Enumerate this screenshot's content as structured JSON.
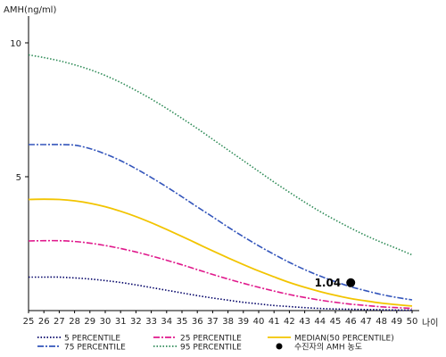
{
  "chart_data": {
    "type": "line",
    "ylabel": "AMH(ng/ml)",
    "xlabel": "나이",
    "xlim": [
      25,
      50
    ],
    "ylim": [
      0,
      11
    ],
    "yticks": [
      5,
      10
    ],
    "x": [
      25,
      26,
      27,
      28,
      29,
      30,
      31,
      32,
      33,
      34,
      35,
      36,
      37,
      38,
      39,
      40,
      41,
      42,
      43,
      44,
      45,
      46,
      47,
      48,
      49,
      50
    ],
    "series": [
      {
        "name": "5 PERCENTILE",
        "color": "#000066",
        "dash": "1.5,2",
        "values": [
          1.25,
          1.25,
          1.25,
          1.22,
          1.18,
          1.12,
          1.05,
          0.96,
          0.86,
          0.76,
          0.66,
          0.56,
          0.47,
          0.39,
          0.31,
          0.25,
          0.19,
          0.15,
          0.11,
          0.08,
          0.06,
          0.05,
          0.04,
          0.03,
          0.02,
          0.02
        ]
      },
      {
        "name": "25 PERCENTILE",
        "color": "#e0198c",
        "dash": "7,2,2,2",
        "values": [
          2.6,
          2.61,
          2.61,
          2.58,
          2.52,
          2.43,
          2.32,
          2.19,
          2.04,
          1.88,
          1.71,
          1.53,
          1.35,
          1.18,
          1.02,
          0.87,
          0.73,
          0.6,
          0.49,
          0.39,
          0.31,
          0.24,
          0.19,
          0.14,
          0.11,
          0.08
        ]
      },
      {
        "name": "MEDIAN(50 PERCENTILE)",
        "color": "#f2c400",
        "dash": "",
        "values": [
          4.15,
          4.16,
          4.15,
          4.1,
          4.01,
          3.88,
          3.71,
          3.51,
          3.28,
          3.03,
          2.77,
          2.5,
          2.23,
          1.97,
          1.72,
          1.48,
          1.26,
          1.05,
          0.87,
          0.71,
          0.57,
          0.45,
          0.36,
          0.28,
          0.22,
          0.17
        ]
      },
      {
        "name": "75 PERCENTILE",
        "color": "#3355bb",
        "dash": "7,2,2,2",
        "values": [
          6.2,
          6.2,
          6.2,
          6.18,
          6.05,
          5.85,
          5.6,
          5.3,
          4.97,
          4.62,
          4.25,
          3.87,
          3.5,
          3.12,
          2.76,
          2.42,
          2.1,
          1.8,
          1.53,
          1.29,
          1.08,
          0.89,
          0.74,
          0.6,
          0.49,
          0.4
        ]
      },
      {
        "name": "95 PERCENTILE",
        "color": "#2e8b57",
        "dash": "1.5,2",
        "values": [
          9.55,
          9.45,
          9.33,
          9.18,
          9.0,
          8.78,
          8.52,
          8.22,
          7.9,
          7.55,
          7.18,
          6.8,
          6.4,
          6.0,
          5.6,
          5.2,
          4.8,
          4.42,
          4.05,
          3.7,
          3.38,
          3.08,
          2.8,
          2.55,
          2.32,
          2.08
        ]
      }
    ],
    "marker": {
      "name": "수진자의 AMH 농도",
      "x": 46,
      "y": 1.04,
      "label": "1.04"
    },
    "legend": {
      "placement": "bottom",
      "order": [
        "5 PERCENTILE",
        "25 PERCENTILE",
        "MEDIAN(50 PERCENTILE)",
        "75 PERCENTILE",
        "95 PERCENTILE",
        "수진자의 AMH 농도"
      ]
    }
  }
}
